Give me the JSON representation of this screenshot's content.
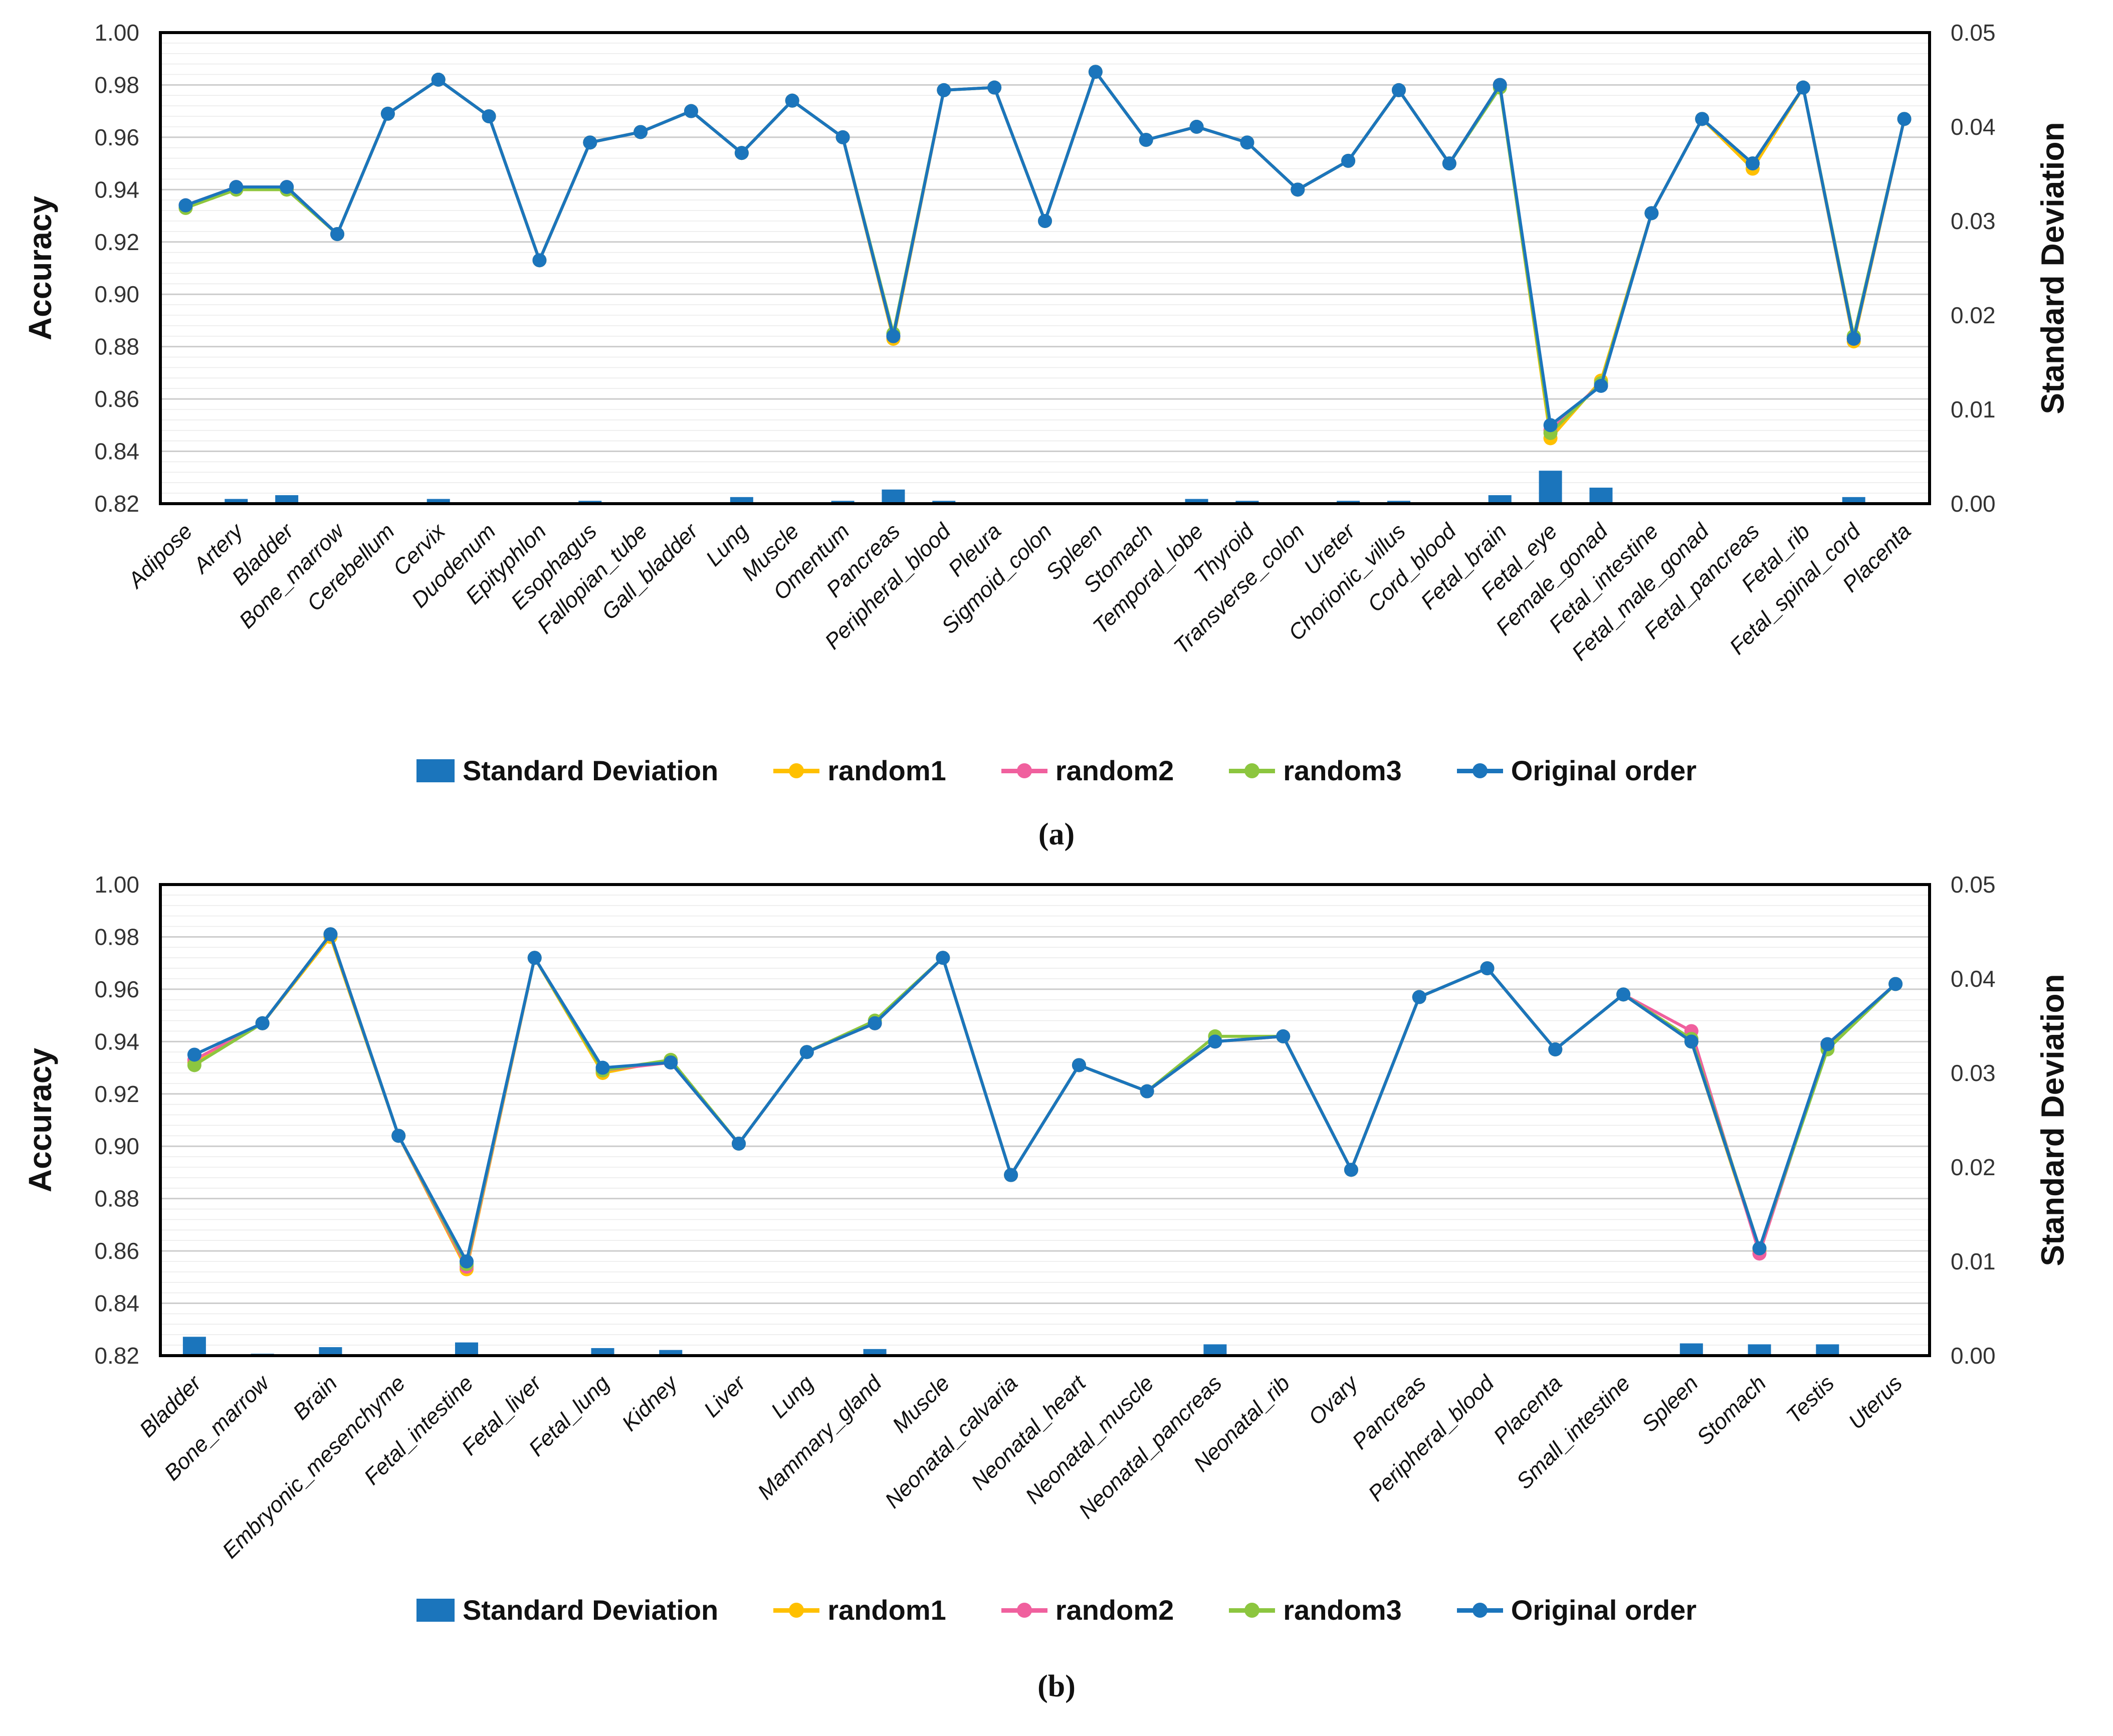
{
  "figure": {
    "caption_a": "(a)",
    "caption_b": "(b)"
  },
  "colors": {
    "bar_blue": "#1B75BC",
    "random1": "#FFC000",
    "random2": "#F0609E",
    "random3": "#8CC63F",
    "original": "#1B75BC",
    "grid_minor": "#EBEBEB",
    "grid_major": "#CCCCCC",
    "axis_black": "#000000"
  },
  "legend": {
    "items": [
      {
        "label": "Standard Deviation",
        "type": "bar",
        "color": "#1B75BC"
      },
      {
        "label": "random1",
        "type": "line",
        "color": "#FFC000"
      },
      {
        "label": "random2",
        "type": "line",
        "color": "#F0609E"
      },
      {
        "label": "random3",
        "type": "line",
        "color": "#8CC63F"
      },
      {
        "label": "Original order",
        "type": "line",
        "color": "#1B75BC"
      }
    ]
  },
  "chart_data": [
    {
      "id": "a",
      "type": "line",
      "ylabel_left": "Accuracy",
      "ylabel_right": "Standard Deviation",
      "ylim_left": [
        0.82,
        1.0
      ],
      "ylim_right": [
        0.0,
        0.05
      ],
      "yticks_left": [
        "1.00",
        "0.98",
        "0.96",
        "0.94",
        "0.92",
        "0.90",
        "0.88",
        "0.86",
        "0.84",
        "0.82"
      ],
      "yticks_right": [
        "0.05",
        "0.04",
        "0.03",
        "0.02",
        "0.01",
        "0.00"
      ],
      "grid": {
        "minor_step": 0.004,
        "major_step": 0.02,
        "grid_on": true
      },
      "legend_position": "bottom",
      "categories": [
        "Adipose",
        "Artery",
        "Bladder",
        "Bone_marrow",
        "Cerebellum",
        "Cervix",
        "Duodenum",
        "Epityphlon",
        "Esophagus",
        "Fallopian_tube",
        "Gall_bladder",
        "Lung",
        "Muscle",
        "Omentum",
        "Pancreas",
        "Peripheral_blood",
        "Pleura",
        "Sigmoid_colon",
        "Spleen",
        "Stomach",
        "Temporal_lobe",
        "Thyroid",
        "Transverse_colon",
        "Ureter",
        "Chorionic_villus",
        "Cord_blood",
        "Fetal_brain",
        "Fetal_eye",
        "Female_gonad",
        "Fetal_intestine",
        "Fetal_male_gonad",
        "Fetal_pancreas",
        "Fetal_rib",
        "Fetal_spinal_cord",
        "Placenta"
      ],
      "bars": {
        "name": "Standard Deviation",
        "axis": "right",
        "color": "#1B75BC",
        "values": [
          0,
          0.0005,
          0.0009,
          0,
          0,
          0.0005,
          0,
          0,
          0.0003,
          0,
          0,
          0.0007,
          0,
          0.0003,
          0.0015,
          0.0003,
          0,
          0,
          0,
          0,
          0.0005,
          0.0003,
          0,
          0.0003,
          0.0003,
          0,
          0.0009,
          0.0035,
          0.0017,
          0,
          0,
          0,
          0,
          0.0007,
          0
        ]
      },
      "series": [
        {
          "name": "random1",
          "color": "#FFC000",
          "values": [
            0.933,
            0.94,
            0.94,
            0.923,
            0.969,
            0.982,
            0.968,
            0.913,
            0.958,
            0.962,
            0.97,
            0.954,
            0.974,
            0.96,
            0.883,
            0.978,
            0.979,
            0.928,
            0.985,
            0.959,
            0.964,
            0.958,
            0.94,
            0.951,
            0.978,
            0.95,
            0.98,
            0.845,
            0.867,
            0.931,
            0.967,
            0.948,
            0.979,
            0.882,
            0.967
          ]
        },
        {
          "name": "random2",
          "color": "#F0609E",
          "values": [
            0.934,
            0.941,
            0.941,
            0.923,
            0.969,
            0.982,
            0.968,
            0.913,
            0.958,
            0.962,
            0.97,
            0.954,
            0.974,
            0.96,
            0.884,
            0.978,
            0.979,
            0.928,
            0.985,
            0.959,
            0.964,
            0.958,
            0.94,
            0.951,
            0.978,
            0.95,
            0.98,
            0.848,
            0.866,
            0.931,
            0.967,
            0.95,
            0.979,
            0.883,
            0.967
          ]
        },
        {
          "name": "random3",
          "color": "#8CC63F",
          "values": [
            0.933,
            0.94,
            0.94,
            0.923,
            0.969,
            0.982,
            0.968,
            0.913,
            0.958,
            0.962,
            0.97,
            0.954,
            0.974,
            0.96,
            0.885,
            0.978,
            0.979,
            0.928,
            0.985,
            0.959,
            0.964,
            0.958,
            0.94,
            0.951,
            0.978,
            0.95,
            0.979,
            0.847,
            0.866,
            0.931,
            0.967,
            0.95,
            0.979,
            0.884,
            0.967
          ]
        },
        {
          "name": "Original order",
          "color": "#1B75BC",
          "values": [
            0.934,
            0.941,
            0.941,
            0.923,
            0.969,
            0.982,
            0.968,
            0.913,
            0.958,
            0.962,
            0.97,
            0.954,
            0.974,
            0.96,
            0.884,
            0.978,
            0.979,
            0.928,
            0.985,
            0.959,
            0.964,
            0.958,
            0.94,
            0.951,
            0.978,
            0.95,
            0.98,
            0.85,
            0.865,
            0.931,
            0.967,
            0.95,
            0.979,
            0.883,
            0.967
          ]
        }
      ]
    },
    {
      "id": "b",
      "type": "line",
      "ylabel_left": "Accuracy",
      "ylabel_right": "Standard Deviation",
      "ylim_left": [
        0.82,
        1.0
      ],
      "ylim_right": [
        0.0,
        0.05
      ],
      "yticks_left": [
        "1.00",
        "0.98",
        "0.96",
        "0.94",
        "0.92",
        "0.90",
        "0.88",
        "0.86",
        "0.84",
        "0.82"
      ],
      "yticks_right": [
        "0.05",
        "0.04",
        "0.03",
        "0.02",
        "0.01",
        "0.00"
      ],
      "grid": {
        "minor_step": 0.004,
        "major_step": 0.02,
        "grid_on": true
      },
      "legend_position": "bottom",
      "categories": [
        "Bladder",
        "Bone_marrow",
        "Brain",
        "Embryonic_mesenchyme",
        "Fetal_intestine",
        "Fetal_liver",
        "Fetal_lung",
        "Kidney",
        "Liver",
        "Lung",
        "Mammary_gland",
        "Muscle",
        "Neonatal_calvaria",
        "Neonatal_heart",
        "Neonatal_muscle",
        "Neonatal_pancreas",
        "Neonatal_rib",
        "Ovary",
        "Pancreas",
        "Peripheral_blood",
        "Placenta",
        "Small_intestine",
        "Spleen",
        "Stomach",
        "Testis",
        "Uterus"
      ],
      "bars": {
        "name": "Standard Deviation",
        "axis": "right",
        "color": "#1B75BC",
        "values": [
          0.002,
          0.0002,
          0.0009,
          0,
          0.0014,
          0,
          0.0008,
          0.0006,
          0,
          0,
          0.0007,
          0,
          0,
          0,
          0,
          0.0012,
          0,
          0,
          0,
          0,
          0,
          0,
          0.0013,
          0.0012,
          0.0012,
          0
        ]
      },
      "series": [
        {
          "name": "random1",
          "color": "#FFC000",
          "values": [
            0.932,
            0.947,
            0.98,
            0.904,
            0.853,
            0.972,
            0.928,
            0.933,
            0.901,
            0.936,
            0.947,
            0.972,
            0.889,
            0.931,
            0.921,
            0.94,
            0.942,
            0.891,
            0.957,
            0.968,
            0.937,
            0.958,
            0.94,
            0.86,
            0.938,
            0.962
          ]
        },
        {
          "name": "random2",
          "color": "#F0609E",
          "values": [
            0.933,
            0.947,
            0.981,
            0.904,
            0.854,
            0.972,
            0.929,
            0.932,
            0.901,
            0.936,
            0.947,
            0.972,
            0.889,
            0.931,
            0.921,
            0.94,
            0.942,
            0.891,
            0.957,
            0.968,
            0.937,
            0.958,
            0.944,
            0.859,
            0.939,
            0.962
          ]
        },
        {
          "name": "random3",
          "color": "#8CC63F",
          "values": [
            0.931,
            0.947,
            0.981,
            0.904,
            0.855,
            0.972,
            0.929,
            0.933,
            0.901,
            0.936,
            0.948,
            0.972,
            0.889,
            0.931,
            0.921,
            0.942,
            0.942,
            0.891,
            0.957,
            0.968,
            0.937,
            0.958,
            0.941,
            0.861,
            0.937,
            0.962
          ]
        },
        {
          "name": "Original order",
          "color": "#1B75BC",
          "values": [
            0.935,
            0.947,
            0.981,
            0.904,
            0.856,
            0.972,
            0.93,
            0.932,
            0.901,
            0.936,
            0.947,
            0.972,
            0.889,
            0.931,
            0.921,
            0.94,
            0.942,
            0.891,
            0.957,
            0.968,
            0.937,
            0.958,
            0.94,
            0.861,
            0.939,
            0.962
          ]
        }
      ]
    }
  ]
}
